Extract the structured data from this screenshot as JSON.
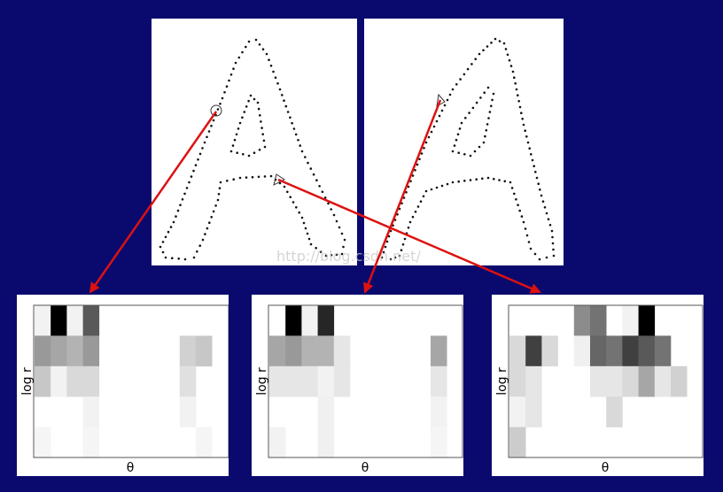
{
  "watermark": "http://blog.csdn.net/",
  "histograms": [
    {
      "id": "hist-1",
      "xlabel": "θ",
      "ylabel": "log r",
      "grid": [
        [
          0.05,
          1.0,
          0.05,
          0.65,
          0,
          0,
          0,
          0,
          0,
          0,
          0,
          0
        ],
        [
          0.4,
          0.35,
          0.3,
          0.4,
          0,
          0,
          0,
          0,
          0,
          0.18,
          0.22,
          0
        ],
        [
          0.22,
          0.05,
          0.15,
          0.15,
          0,
          0,
          0,
          0,
          0,
          0.12,
          0,
          0
        ],
        [
          0,
          0,
          0,
          0.05,
          0,
          0,
          0,
          0,
          0,
          0.05,
          0,
          0
        ],
        [
          0.04,
          0,
          0,
          0.04,
          0,
          0,
          0,
          0,
          0,
          0,
          0.04,
          0
        ]
      ]
    },
    {
      "id": "hist-2",
      "xlabel": "θ",
      "ylabel": "log r",
      "grid": [
        [
          0,
          1.0,
          0.05,
          0.85,
          0,
          0,
          0,
          0,
          0,
          0,
          0,
          0
        ],
        [
          0.35,
          0.4,
          0.3,
          0.3,
          0.1,
          0,
          0,
          0,
          0,
          0,
          0.35,
          0
        ],
        [
          0.1,
          0.1,
          0.1,
          0.05,
          0.1,
          0,
          0,
          0,
          0,
          0,
          0.1,
          0
        ],
        [
          0,
          0,
          0,
          0.06,
          0,
          0,
          0,
          0,
          0,
          0,
          0.05,
          0
        ],
        [
          0.05,
          0,
          0,
          0.06,
          0,
          0,
          0,
          0,
          0,
          0,
          0.04,
          0
        ]
      ]
    },
    {
      "id": "hist-3",
      "xlabel": "θ",
      "ylabel": "log r",
      "grid": [
        [
          0,
          0,
          0,
          0,
          0.45,
          0.55,
          0,
          0.05,
          1.0,
          0,
          0,
          0
        ],
        [
          0.15,
          0.75,
          0.15,
          0,
          0.06,
          0.6,
          0.55,
          0.75,
          0.65,
          0.55,
          0,
          0
        ],
        [
          0.15,
          0.1,
          0,
          0,
          0,
          0.1,
          0.1,
          0.15,
          0.35,
          0.1,
          0.18,
          0
        ],
        [
          0.05,
          0.1,
          0,
          0,
          0,
          0,
          0.15,
          0,
          0,
          0,
          0,
          0
        ],
        [
          0.2,
          0,
          0,
          0,
          0,
          0,
          0,
          0,
          0,
          0,
          0,
          0
        ]
      ]
    }
  ]
}
